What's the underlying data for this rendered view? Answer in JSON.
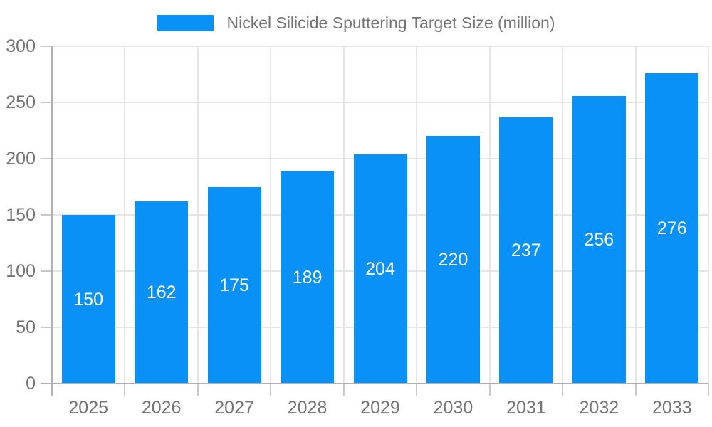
{
  "chart_data": {
    "type": "bar",
    "title": "Nickel Silicide Sputtering Target Size (million)",
    "categories": [
      "2025",
      "2026",
      "2027",
      "2028",
      "2029",
      "2030",
      "2031",
      "2032",
      "2033"
    ],
    "values": [
      150,
      162,
      175,
      189,
      204,
      220,
      237,
      256,
      276
    ],
    "xlabel": "",
    "ylabel": "",
    "ylim": [
      0,
      300
    ],
    "yticks": [
      0,
      50,
      100,
      150,
      200,
      250,
      300
    ],
    "grid": true,
    "legend_position": "top",
    "bar_label_position": "inside-middle"
  },
  "legend": {
    "label": "Nickel Silicide Sputtering Target Size (million)",
    "swatch_color": "#0991f7"
  },
  "colors": {
    "bar": "#0991f7",
    "bar_label": "#ffffff",
    "axis_text": "#757575",
    "grid_line": "#e6e6e6",
    "tick_line": "#c9c9c9",
    "axis_line": "#b0b0b0",
    "background": "#ffffff"
  }
}
